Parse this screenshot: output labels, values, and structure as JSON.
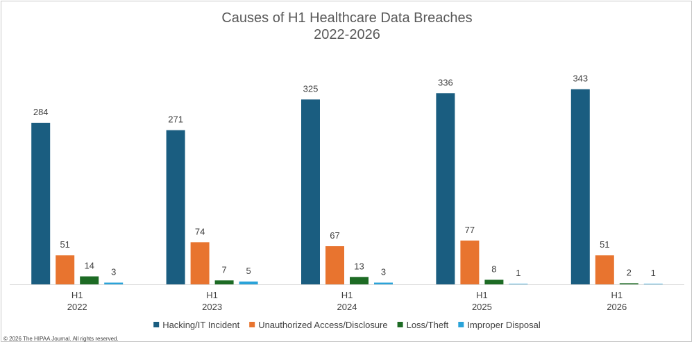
{
  "chart_data": {
    "type": "bar",
    "title_lines": [
      "Causes of H1 Healthcare Data Breaches",
      "2022-2026"
    ],
    "categories": [
      [
        "H1",
        "2022"
      ],
      [
        "H1",
        "2023"
      ],
      [
        "H1",
        "2024"
      ],
      [
        "H1",
        "2025"
      ],
      [
        "H1",
        "2026"
      ]
    ],
    "series": [
      {
        "name": "Hacking/IT Incident",
        "color": "#1a5d80",
        "values": [
          284,
          271,
          325,
          336,
          343
        ]
      },
      {
        "name": "Unauthorized Access/Disclosure",
        "color": "#e8742f",
        "values": [
          51,
          74,
          67,
          77,
          51
        ]
      },
      {
        "name": "Loss/Theft",
        "color": "#1d6b24",
        "values": [
          14,
          7,
          13,
          8,
          2
        ]
      },
      {
        "name": "Improper Disposal",
        "color": "#2aa3d9",
        "values": [
          3,
          5,
          3,
          1,
          1
        ]
      }
    ],
    "ylim": [
      0,
      400
    ],
    "grid": false,
    "legend": "bottom",
    "data_labels": true
  },
  "footer": {
    "copyright": "© 2026 The HIPAA Journal. All rights reserved."
  }
}
